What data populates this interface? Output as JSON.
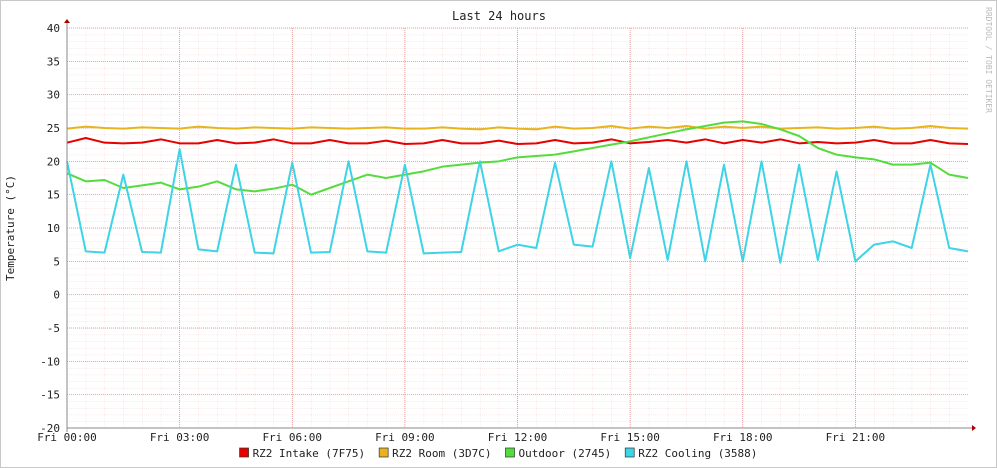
{
  "chart_data": {
    "type": "line",
    "title": "Last 24 hours",
    "y_label": "Temperature (°C)",
    "watermark": "RRDTOOL / TOBI OETIKER",
    "x": [
      0,
      0.5,
      1,
      1.5,
      2,
      2.5,
      3,
      3.5,
      4,
      4.5,
      5,
      5.5,
      6,
      6.5,
      7,
      7.5,
      8,
      8.5,
      9,
      9.5,
      10,
      10.5,
      11,
      11.5,
      12,
      12.5,
      13,
      13.5,
      14,
      14.5,
      15,
      15.5,
      16,
      16.5,
      17,
      17.5,
      18,
      18.5,
      19,
      19.5,
      20,
      20.5,
      21,
      21.5,
      22,
      22.5,
      23,
      23.5,
      24
    ],
    "xlim": [
      0,
      24
    ],
    "xticks": [
      {
        "value": 0,
        "label": "Fri 00:00"
      },
      {
        "value": 3,
        "label": "Fri 03:00"
      },
      {
        "value": 6,
        "label": "Fri 06:00"
      },
      {
        "value": 9,
        "label": "Fri 09:00"
      },
      {
        "value": 12,
        "label": "Fri 12:00"
      },
      {
        "value": 15,
        "label": "Fri 15:00"
      },
      {
        "value": 18,
        "label": "Fri 18:00"
      },
      {
        "value": 21,
        "label": "Fri 21:00"
      }
    ],
    "ylim": [
      -20,
      40
    ],
    "yticks": [
      -20,
      -15,
      -10,
      -5,
      0,
      5,
      10,
      15,
      20,
      25,
      30,
      35,
      40
    ],
    "grid": true,
    "legend": "bottom",
    "series": [
      {
        "name": "RZ2 Intake (7F75)",
        "color": "#e60000",
        "values": [
          22.8,
          23.5,
          22.8,
          22.7,
          22.8,
          23.3,
          22.7,
          22.7,
          23.2,
          22.7,
          22.8,
          23.3,
          22.7,
          22.7,
          23.2,
          22.7,
          22.7,
          23.1,
          22.6,
          22.7,
          23.2,
          22.7,
          22.7,
          23.1,
          22.6,
          22.7,
          23.2,
          22.7,
          22.8,
          23.3,
          22.7,
          22.9,
          23.2,
          22.8,
          23.3,
          22.7,
          23.2,
          22.8,
          23.3,
          22.7,
          22.9,
          22.7,
          22.8,
          23.2,
          22.7,
          22.7,
          23.2,
          22.7,
          22.6
        ]
      },
      {
        "name": "RZ2 Room (3D7C)",
        "color": "#e8b41e",
        "values": [
          24.9,
          25.2,
          25.0,
          24.9,
          25.1,
          25.0,
          24.9,
          25.2,
          25.0,
          24.9,
          25.1,
          25.0,
          24.9,
          25.1,
          25.0,
          24.9,
          25.0,
          25.1,
          24.9,
          24.9,
          25.1,
          24.9,
          24.8,
          25.1,
          24.9,
          24.8,
          25.2,
          24.9,
          25.0,
          25.3,
          24.9,
          25.2,
          25.0,
          25.3,
          24.9,
          25.2,
          25.0,
          25.2,
          24.9,
          25.0,
          25.1,
          24.9,
          25.0,
          25.2,
          24.9,
          25.0,
          25.3,
          25.0,
          24.9
        ]
      },
      {
        "name": "Outdoor (2745)",
        "color": "#54dc3c",
        "values": [
          18.2,
          17.0,
          17.2,
          16.0,
          16.4,
          16.8,
          15.8,
          16.2,
          17.0,
          15.8,
          15.5,
          15.9,
          16.5,
          15.0,
          16.0,
          17.0,
          18.0,
          17.5,
          18.0,
          18.5,
          19.2,
          19.5,
          19.8,
          20.0,
          20.6,
          20.8,
          21.0,
          21.5,
          22.0,
          22.5,
          23.0,
          23.6,
          24.2,
          24.8,
          25.3,
          25.8,
          26.0,
          25.6,
          24.8,
          23.8,
          22.0,
          21.0,
          20.6,
          20.3,
          19.5,
          19.5,
          19.8,
          18.0,
          17.5
        ]
      },
      {
        "name": "RZ2 Cooling (3588)",
        "color": "#3cd4e6",
        "values": [
          20.0,
          6.5,
          6.3,
          18.0,
          6.4,
          6.3,
          21.8,
          6.8,
          6.5,
          19.5,
          6.3,
          6.2,
          19.8,
          6.3,
          6.4,
          20.0,
          6.5,
          6.3,
          19.5,
          6.2,
          6.3,
          6.4,
          20.0,
          6.5,
          7.5,
          7.0,
          19.8,
          7.5,
          7.2,
          20.0,
          5.5,
          19.0,
          5.2,
          20.0,
          5.0,
          19.5,
          5.0,
          20.0,
          4.8,
          19.5,
          5.2,
          18.5,
          5.0,
          7.5,
          8.0,
          7.0,
          19.5,
          7.0,
          6.5
        ]
      }
    ]
  }
}
